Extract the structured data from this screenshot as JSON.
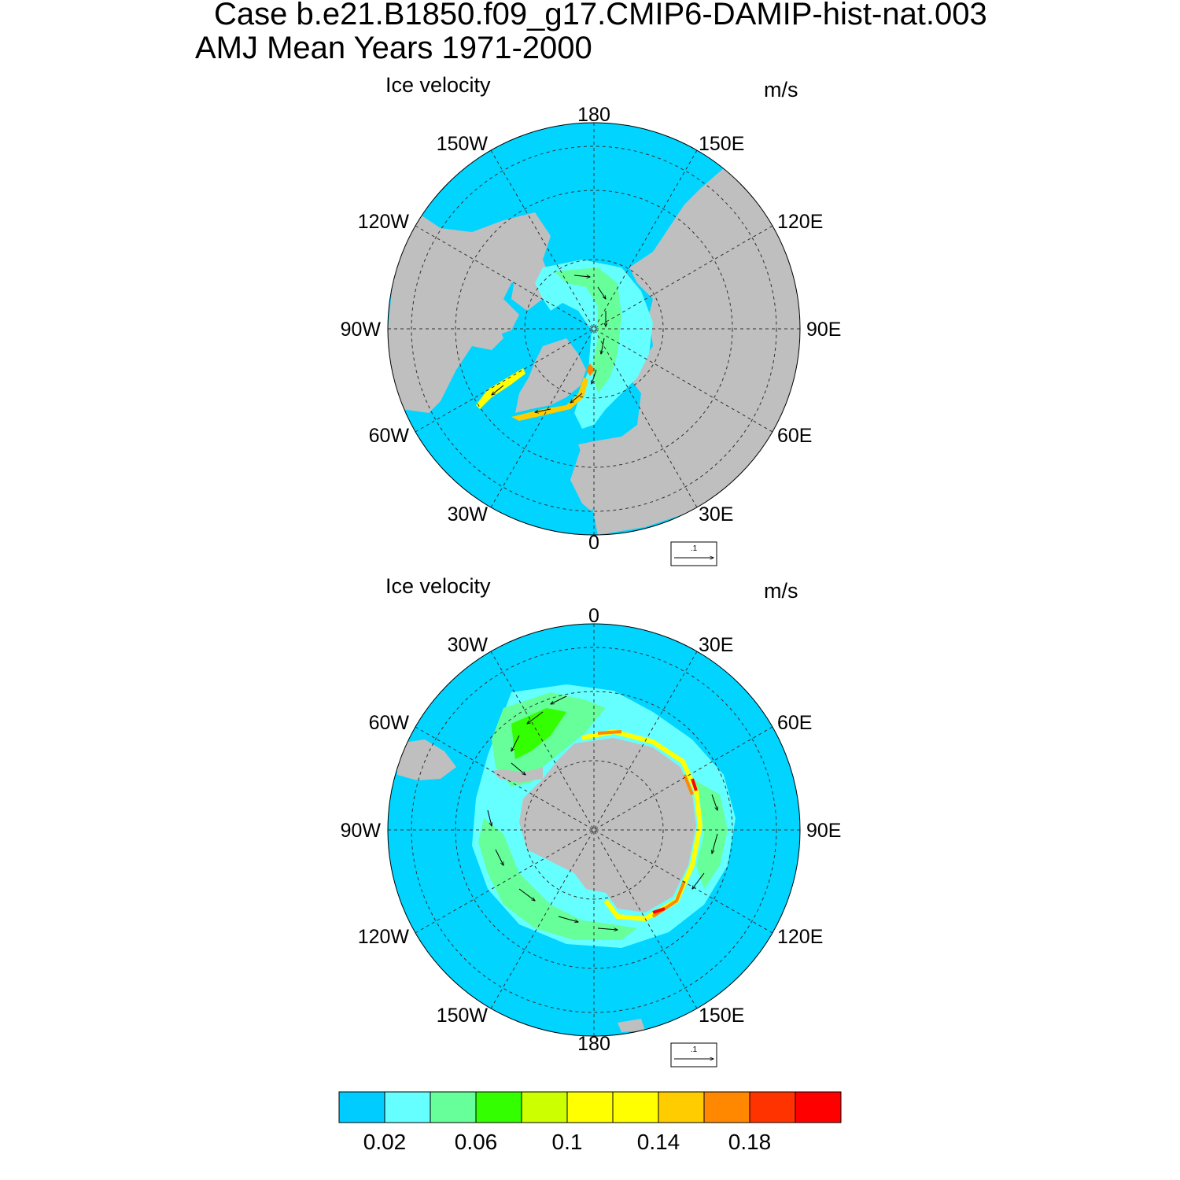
{
  "title_line_1": "Case b.e21.B1850.f09_g17.CMIP6-DAMIP-hist-nat.003",
  "title_line_2": "AMJ Mean   Years 1971-2000",
  "colors": {
    "ocean": "#00d4ff",
    "land": "#bfbfbf",
    "grid": "#333333"
  },
  "icons": {
    "reference_vector": "arrow-right-icon"
  },
  "panels": [
    {
      "id": "north",
      "hemisphere": "Arctic",
      "left_label": "Ice velocity",
      "right_label": "m/s",
      "lon_labels": [
        "180",
        "150E",
        "120E",
        "90E",
        "60E",
        "30E",
        "0",
        "30W",
        "60W",
        "90W",
        "120W",
        "150W"
      ],
      "ref_vector_label": ".1"
    },
    {
      "id": "south",
      "hemisphere": "Antarctic",
      "left_label": "Ice velocity",
      "right_label": "m/s",
      "lon_labels": [
        "0",
        "30E",
        "60E",
        "90E",
        "120E",
        "150E",
        "180",
        "150W",
        "120W",
        "90W",
        "60W",
        "30W"
      ],
      "ref_vector_label": ".1"
    }
  ],
  "colorbar": {
    "colors": [
      "#00ccff",
      "#66ffff",
      "#66ff99",
      "#33ff00",
      "#ccff00",
      "#ffff00",
      "#ffff00",
      "#ffcc00",
      "#ff8800",
      "#ff3300",
      "#ff0000"
    ],
    "tick_labels": [
      "0.02",
      "0.06",
      "0.1",
      "0.14",
      "0.18"
    ]
  }
}
